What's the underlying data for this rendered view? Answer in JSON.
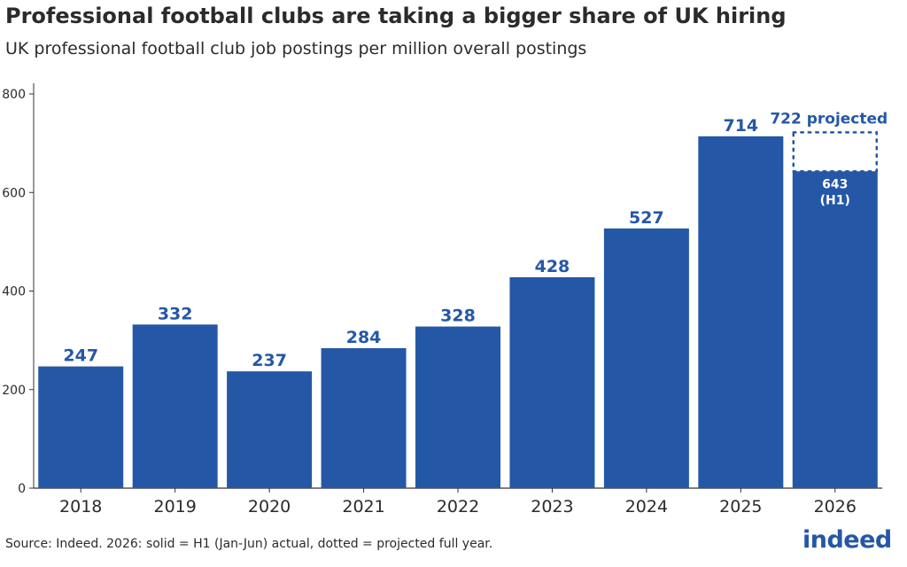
{
  "title": "Professional football clubs are taking a bigger share of UK hiring",
  "subtitle": "UK professional football club job postings per million overall postings",
  "source": "Source: Indeed. 2026: solid = H1 (Jan-Jun) actual, dotted = projected full year.",
  "logo_text": "indeed",
  "colors": {
    "bar": "#2557a7",
    "text": "#2b2b2b",
    "axis": "#333333"
  },
  "chart_data": {
    "type": "bar",
    "categories": [
      "2018",
      "2019",
      "2020",
      "2021",
      "2022",
      "2023",
      "2024",
      "2025",
      "2026"
    ],
    "values": [
      247,
      332,
      237,
      284,
      328,
      428,
      527,
      714,
      643
    ],
    "data_labels": [
      "247",
      "332",
      "237",
      "284",
      "328",
      "428",
      "527",
      "714",
      "643"
    ],
    "projected": {
      "category": "2026",
      "value": 722,
      "label": "722 projected",
      "style": "dotted"
    },
    "h1_label": [
      "643",
      "(H1)"
    ],
    "ylim": [
      0,
      800
    ],
    "yticks": [
      0,
      200,
      400,
      600,
      800
    ],
    "grid": false
  }
}
